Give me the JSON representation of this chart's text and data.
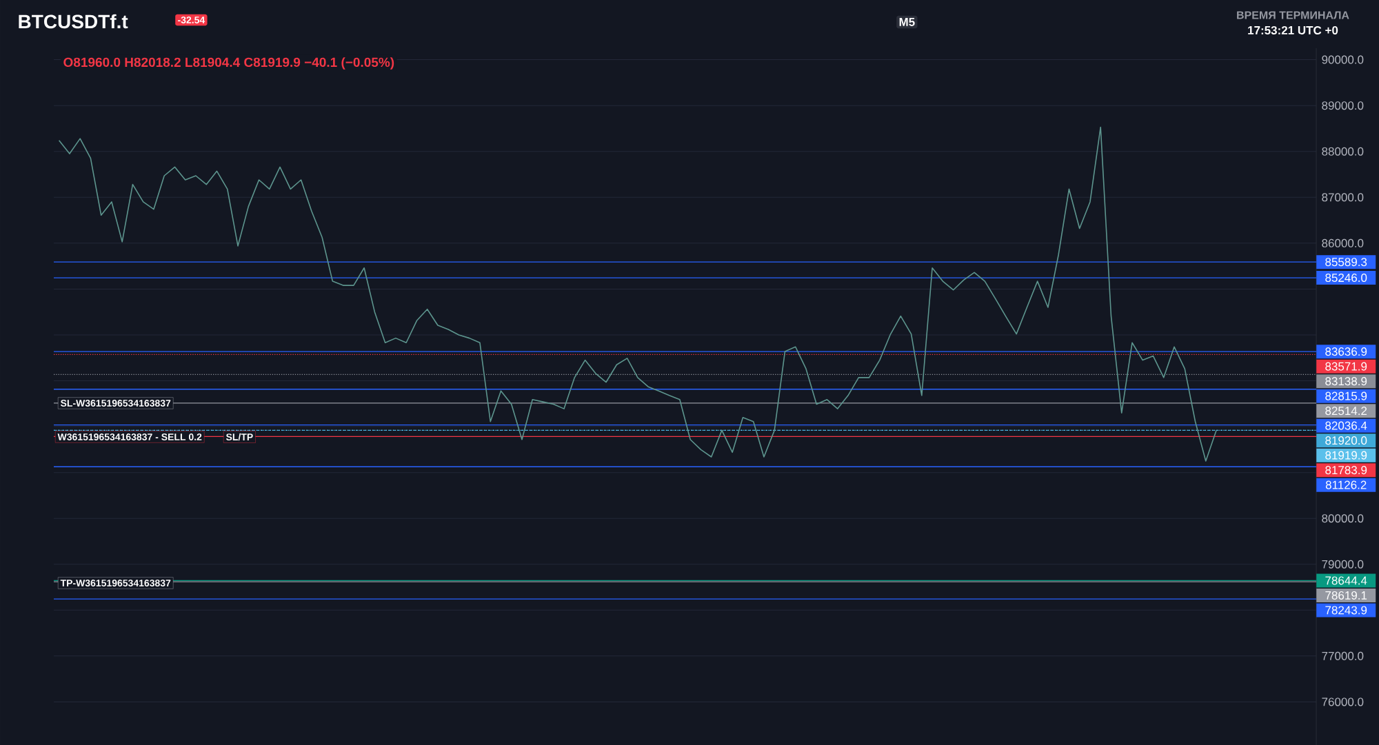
{
  "chart_data": {
    "type": "line",
    "title": "BTCUSDTf.t",
    "annotations": [
      "-32.54",
      "O81960.0 H82018.2 L81904.4 C81919.9 −40.1 (−0.05%)",
      "M5",
      "ВРЕМЯ ТЕРМИНАЛА",
      "17:53:21 UTC +0",
      "SL-W3615196534163837",
      "W3615196534163837 - SELL 0.2",
      "SL/TP",
      "TP-W3615196534163837"
    ],
    "categories": [
      null,
      null,
      null,
      null,
      null,
      null,
      null,
      null,
      null,
      null,
      null,
      null,
      null,
      null,
      null,
      null,
      null,
      null,
      null,
      null,
      null,
      null,
      null,
      null,
      null,
      null,
      null,
      null,
      null,
      null,
      null,
      null,
      null,
      null,
      null,
      null,
      null,
      null,
      null,
      null,
      null,
      null,
      null,
      null,
      null,
      null,
      null,
      null,
      null,
      null,
      null,
      null,
      null,
      null,
      null,
      null,
      null,
      null,
      null,
      null,
      null,
      null,
      null,
      null,
      null,
      null,
      null,
      null,
      null,
      null,
      null,
      null,
      null,
      null,
      null,
      null,
      null,
      null,
      null,
      null,
      null,
      null,
      null,
      null,
      null,
      null,
      null,
      null,
      null,
      null,
      null,
      null,
      null,
      null,
      null,
      null,
      null,
      null,
      null,
      null,
      null,
      null,
      null,
      null,
      null,
      null,
      null,
      null,
      null,
      null,
      null,
      null,
      null,
      null,
      null,
      null,
      null,
      null,
      null,
      null
    ],
    "series": [
      {
        "color": "#5d958e",
        "values": [
          88240,
          87950,
          88280,
          87850,
          86610,
          86900,
          86030,
          87280,
          86900,
          86740,
          87470,
          87660,
          87380,
          87470,
          87280,
          87570,
          87180,
          85940,
          86800,
          87380,
          87180,
          87660,
          87180,
          87380,
          86700,
          86130,
          85170,
          85080,
          85080,
          85460,
          84500,
          83830,
          83930,
          83830,
          84310,
          84560,
          84210,
          84120,
          84000,
          83930,
          83830,
          82110,
          82780,
          82490,
          81720,
          82590,
          82540,
          82490,
          82390,
          83070,
          83450,
          83160,
          82970,
          83350,
          83490,
          83070,
          82870,
          82780,
          82680,
          82590,
          81720,
          81500,
          81340,
          81920,
          81440,
          82200,
          82110,
          81340,
          81920,
          83640,
          83740,
          83260,
          82490,
          82590,
          82390,
          82680,
          83070,
          83070,
          83450,
          84000,
          84410,
          84020,
          82680,
          85460,
          85170,
          84980,
          85200,
          85360,
          85170,
          84790,
          84400,
          84020,
          84600,
          85170,
          84600,
          85750,
          87180,
          86320,
          86900,
          88530,
          84410,
          82300,
          83830,
          83450,
          83540,
          83070,
          83740,
          83260,
          82110,
          81250,
          81920,
          null,
          null,
          null,
          null,
          null,
          null,
          null,
          null,
          null
        ]
      }
    ],
    "ylim": [
      75060,
      90250
    ],
    "yticks": [
      {
        "value": 76000,
        "label": "76000.0"
      },
      {
        "value": 77000,
        "label": "77000.0"
      },
      {
        "value": 78000,
        "label": null
      },
      {
        "value": 79000,
        "label": "79000.0"
      },
      {
        "value": 80000,
        "label": "80000.0"
      },
      {
        "value": 81000,
        "label": null
      },
      {
        "value": 82000,
        "label": null
      },
      {
        "value": 83000,
        "label": null
      },
      {
        "value": 84000,
        "label": null
      },
      {
        "value": 85000,
        "label": null
      },
      {
        "value": 86000,
        "label": "86000.0"
      },
      {
        "value": 87000,
        "label": "87000.0"
      },
      {
        "value": 88000,
        "label": "88000.0"
      },
      {
        "value": 89000,
        "label": "89000.0"
      },
      {
        "value": 90000,
        "label": "90000.0"
      }
    ],
    "ref_lines": [
      {
        "axis": "y",
        "value": 85589.3,
        "label": "85589.3",
        "color": "#2962ff",
        "line_style": "solid"
      },
      {
        "axis": "y",
        "value": 85246.0,
        "label": "85246.0",
        "color": "#2962ff",
        "line_style": "solid"
      },
      {
        "axis": "y",
        "value": 83636.9,
        "label": "83636.9",
        "color": "#2962ff",
        "line_style": "solid"
      },
      {
        "axis": "y",
        "value": 83571.9,
        "label": "83571.9",
        "color": "#f23645",
        "line_style": "dotted"
      },
      {
        "axis": "y",
        "value": 83138.9,
        "label": "83138.9",
        "color": "#8a8d96",
        "line_style": "dotted"
      },
      {
        "axis": "y",
        "value": 82815.9,
        "label": "82815.9",
        "color": "#2962ff",
        "line_style": "solid"
      },
      {
        "axis": "y",
        "value": 82514.2,
        "label": "82514.2",
        "color": "#9598a1",
        "line_style": "solid"
      },
      {
        "axis": "y",
        "value": 82036.4,
        "label": "82036.4",
        "color": "#2962ff",
        "line_style": "solid"
      },
      {
        "axis": "y",
        "value": 81920.0,
        "label": "81920.0",
        "color": "#3fa9d8",
        "line_style": "dashed"
      },
      {
        "axis": "y",
        "value": 81919.9,
        "label": "81919.9",
        "color": "#5bc0eb",
        "line_style": "dotted"
      },
      {
        "axis": "y",
        "value": 81783.9,
        "label": "81783.9",
        "color": "#f23645",
        "line_style": "solid"
      },
      {
        "axis": "y",
        "value": 81126.2,
        "label": "81126.2",
        "color": "#2962ff",
        "line_style": "solid"
      },
      {
        "axis": "y",
        "value": 78644.4,
        "label": "78644.4",
        "color": "#089981",
        "line_style": "solid"
      },
      {
        "axis": "y",
        "value": 78619.1,
        "label": "78619.1",
        "color": "#9598a1",
        "line_style": "solid"
      },
      {
        "axis": "y",
        "value": 78243.9,
        "label": "78243.9",
        "color": "#2962ff",
        "line_style": "solid"
      }
    ],
    "grid": "y",
    "tick_labels": "y"
  }
}
